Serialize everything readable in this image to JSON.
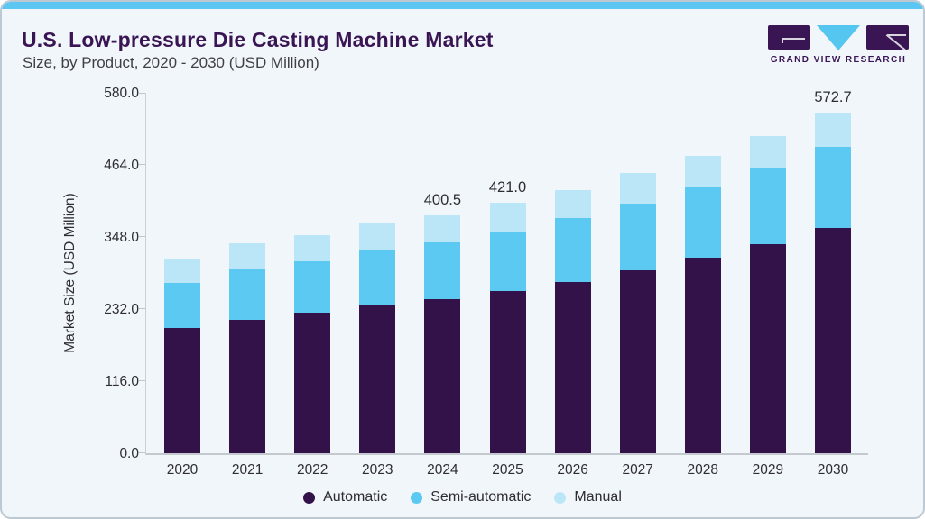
{
  "logo": {
    "text": "GRAND VIEW RESEARCH",
    "purple": "#3a1554",
    "blue": "#55c6f0"
  },
  "colors": {
    "accent_strip": "#5bc6f1",
    "card_background": "#f0f6fa",
    "card_border": "#bdc9d2",
    "title_text": "#3a1554",
    "body_text": "#2d2d33",
    "axis_line": "#c6ccd1"
  },
  "chart_data": {
    "type": "bar",
    "stacked": true,
    "title": "U.S. Low-pressure Die Casting Machine Market",
    "subtitle": "Size, by Product, 2020 - 2030 (USD Million)",
    "ylabel": "Market Size (USD Million)",
    "xlabel": "",
    "ylim": [
      0,
      580
    ],
    "yticks": [
      0,
      116,
      232,
      348,
      464,
      580
    ],
    "ytick_labels": [
      "0.0",
      "116.0",
      "232.0",
      "348.0",
      "464.0",
      "580.0"
    ],
    "grid": "off",
    "legend_position": "bottom",
    "categories": [
      "2020",
      "2021",
      "2022",
      "2023",
      "2024",
      "2025",
      "2026",
      "2027",
      "2028",
      "2029",
      "2030"
    ],
    "series": [
      {
        "name": "Automatic",
        "color": "#33124a",
        "values": [
          209.9,
          225.0,
          237.1,
          249.7,
          259.8,
          272.9,
          288.6,
          307.7,
          328.4,
          351.1,
          378.8
        ]
      },
      {
        "name": "Semi-automatic",
        "color": "#5cc9f3",
        "values": [
          76.6,
          84.1,
          85.7,
          92.3,
          94.7,
          100.5,
          106.4,
          112.6,
          120.0,
          128.6,
          136.8
        ]
      },
      {
        "name": "Manual",
        "color": "#bae6f8",
        "values": [
          41.5,
          43.9,
          43.9,
          44.3,
          46.0,
          47.6,
          48.0,
          50.4,
          51.5,
          54.0,
          57.1
        ]
      }
    ],
    "totals": [
      328.0,
      353.0,
      366.7,
      386.3,
      400.5,
      421.0,
      443.0,
      470.7,
      499.9,
      533.7,
      572.7
    ],
    "bar_total_labels": {
      "2024": "400.5",
      "2025": "421.0",
      "2030": "572.7"
    }
  }
}
